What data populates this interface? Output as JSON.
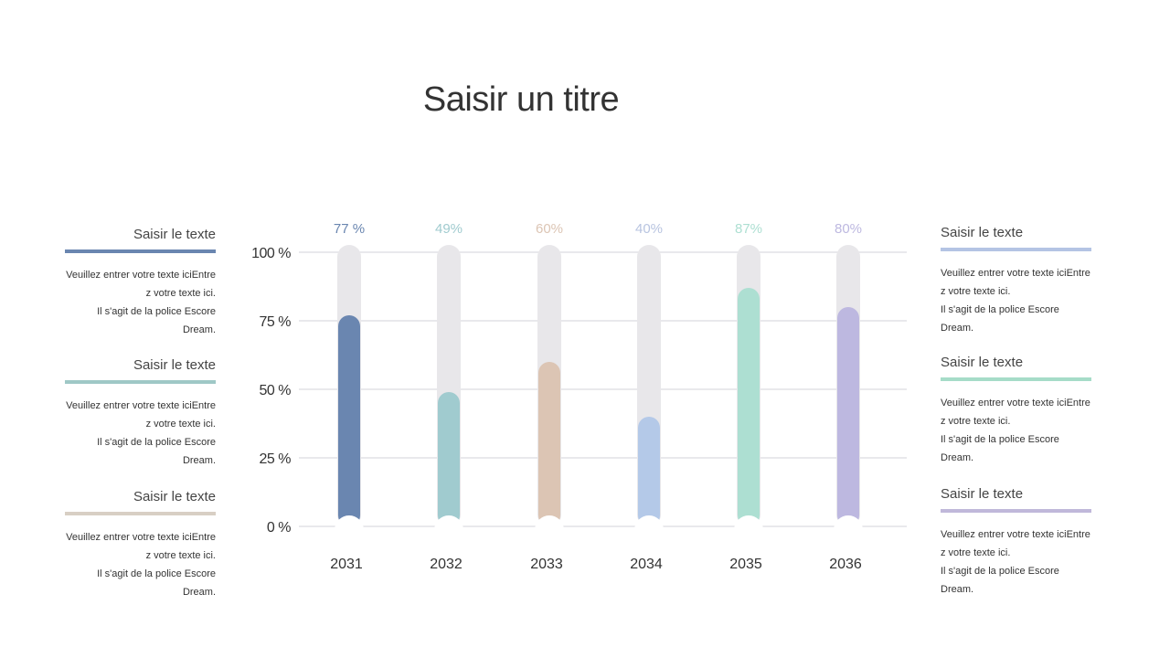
{
  "title": "Saisir un titre",
  "left_panels": [
    {
      "heading": "Saisir le texte",
      "color": "#6a86b0",
      "body": "Veuillez entrer votre texte iciEntre\nz votre texte ici.\nIl s'agit de la police Escore Dream."
    },
    {
      "heading": "Saisir le texte",
      "color": "#9fc8c6",
      "body": "Veuillez entrer votre texte iciEntre\nz votre texte ici.\nIl s'agit de la police Escore Dream."
    },
    {
      "heading": "Saisir le texte",
      "color": "#d8cfc4",
      "body": "Veuillez entrer votre texte iciEntre\nz votre texte ici.\nIl s'agit de la police Escore Dream."
    }
  ],
  "right_panels": [
    {
      "heading": "Saisir le texte",
      "color": "#b4c4e4",
      "body": "Veuillez entrer votre texte iciEntre\nz votre texte ici.\nIl s'agit de la police Escore Dream."
    },
    {
      "heading": "Saisir le texte",
      "color": "#a6dcc8",
      "body": "Veuillez entrer votre texte iciEntre\nz votre texte ici.\nIl s'agit de la police Escore Dream."
    },
    {
      "heading": "Saisir le texte",
      "color": "#c0b8da",
      "body": "Veuillez entrer votre texte iciEntre\nz votre texte ici.\nIl s'agit de la police Escore Dream."
    }
  ],
  "chart_data": {
    "type": "bar",
    "categories": [
      "2031",
      "2032",
      "2033",
      "2034",
      "2035",
      "2036"
    ],
    "values": [
      77,
      49,
      60,
      40,
      87,
      80
    ],
    "data_labels": [
      "77 %",
      "49%",
      "60%",
      "40%",
      "87%",
      "80%"
    ],
    "colors": [
      "#6a86b0",
      "#a0cbcf",
      "#dcc5b4",
      "#b4c9e8",
      "#addfd2",
      "#bdb8e0"
    ],
    "label_colors": [
      "#6a86b0",
      "#a0cbcf",
      "#dcc5b4",
      "#b8c4e0",
      "#addfd2",
      "#bdb8e0"
    ],
    "track_color": "#e8e7ea",
    "yticks": [
      "0 %",
      "25 %",
      "50 %",
      "75 %",
      "100 %"
    ],
    "ylim": [
      0,
      100
    ],
    "grid": true
  }
}
